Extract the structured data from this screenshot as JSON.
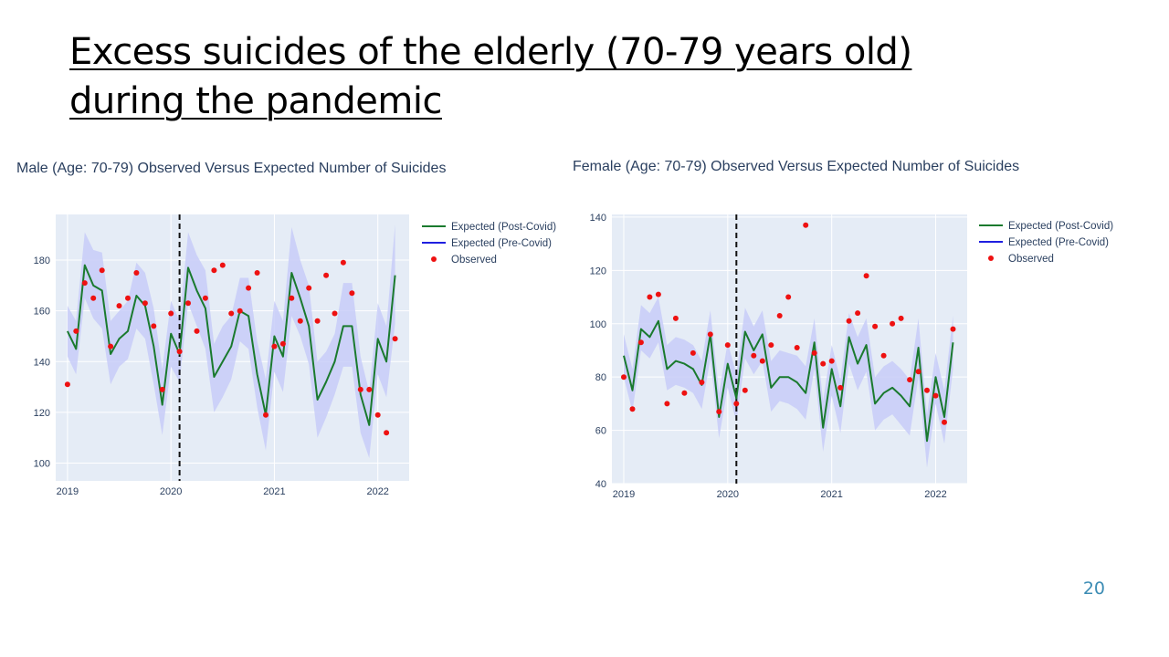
{
  "slide": {
    "title_line1": "Excess suicides of the elderly (70-79 years old)",
    "title_line2": "during the pandemic",
    "page_number": "20"
  },
  "colors": {
    "post_covid": "#1a7a2e",
    "pre_covid": "#1f1fe0",
    "observed": "#ee1111",
    "band": "#c8ccf8",
    "plot_bg": "#e5ecf6",
    "grid": "#ffffff"
  },
  "chart_data": [
    {
      "type": "line",
      "title": "Male (Age: 70-79) Observed Versus Expected Number of Suicides",
      "xlabel": "",
      "ylabel": "",
      "x_ticks": [
        "2019",
        "2020",
        "2021",
        "2022"
      ],
      "y_ticks": [
        100,
        120,
        140,
        160,
        180
      ],
      "xlim": [
        "2018-11-20",
        "2022-04-20"
      ],
      "ylim": [
        93,
        198
      ],
      "covid_marker": "2020-02",
      "legend": [
        "Expected (Post-Covid)",
        "Expected (Pre-Covid)",
        "Observed"
      ],
      "legend_position": "right",
      "grid": true,
      "x": [
        "2019-01",
        "2019-02",
        "2019-03",
        "2019-04",
        "2019-05",
        "2019-06",
        "2019-07",
        "2019-08",
        "2019-09",
        "2019-10",
        "2019-11",
        "2019-12",
        "2020-01",
        "2020-02",
        "2020-03",
        "2020-04",
        "2020-05",
        "2020-06",
        "2020-07",
        "2020-08",
        "2020-09",
        "2020-10",
        "2020-11",
        "2020-12",
        "2021-01",
        "2021-02",
        "2021-03",
        "2021-04",
        "2021-05",
        "2021-06",
        "2021-07",
        "2021-08",
        "2021-09",
        "2021-10",
        "2021-11",
        "2021-12",
        "2022-01",
        "2022-02",
        "2022-03"
      ],
      "series": [
        {
          "name": "Expected (Post-Covid)",
          "kind": "line",
          "values": [
            152,
            145,
            178,
            170,
            168,
            143,
            149,
            152,
            166,
            162,
            146,
            123,
            151,
            143,
            177,
            168,
            161,
            134,
            140,
            146,
            160,
            158,
            135,
            119,
            150,
            142,
            175,
            165,
            154,
            125,
            132,
            140,
            154,
            154,
            127,
            115,
            149,
            140,
            174
          ]
        },
        {
          "name": "Band",
          "kind": "band",
          "upper": [
            162,
            156,
            191,
            184,
            183,
            156,
            160,
            164,
            179,
            175,
            161,
            137,
            164,
            156,
            191,
            182,
            176,
            147,
            154,
            158,
            173,
            173,
            148,
            133,
            164,
            156,
            193,
            180,
            170,
            140,
            144,
            151,
            171,
            171,
            142,
            128,
            163,
            154,
            194
          ],
          "lower": [
            142,
            135,
            165,
            157,
            153,
            131,
            138,
            141,
            153,
            149,
            131,
            111,
            138,
            132,
            163,
            154,
            145,
            120,
            126,
            133,
            148,
            145,
            122,
            105,
            136,
            128,
            158,
            150,
            139,
            110,
            118,
            127,
            138,
            138,
            112,
            102,
            135,
            126,
            155
          ]
        },
        {
          "name": "Observed",
          "kind": "scatter",
          "values": [
            131,
            152,
            171,
            165,
            176,
            146,
            162,
            165,
            175,
            163,
            154,
            129,
            159,
            144,
            163,
            152,
            165,
            176,
            178,
            159,
            160,
            169,
            175,
            119,
            146,
            147,
            165,
            156,
            169,
            156,
            174,
            159,
            179,
            167,
            129,
            129,
            119,
            112,
            149
          ]
        }
      ]
    },
    {
      "type": "line",
      "title": "Female (Age: 70-79) Observed Versus Expected Number of Suicides",
      "xlabel": "",
      "ylabel": "",
      "x_ticks": [
        "2019",
        "2020",
        "2021",
        "2022"
      ],
      "y_ticks": [
        40,
        60,
        80,
        100,
        120,
        140
      ],
      "xlim": [
        "2018-11-20",
        "2022-04-20"
      ],
      "ylim": [
        40,
        141
      ],
      "covid_marker": "2020-02",
      "legend": [
        "Expected (Post-Covid)",
        "Expected (Pre-Covid)",
        "Observed"
      ],
      "legend_position": "right",
      "grid": true,
      "x": [
        "2019-01",
        "2019-02",
        "2019-03",
        "2019-04",
        "2019-05",
        "2019-06",
        "2019-07",
        "2019-08",
        "2019-09",
        "2019-10",
        "2019-11",
        "2019-12",
        "2020-01",
        "2020-02",
        "2020-03",
        "2020-04",
        "2020-05",
        "2020-06",
        "2020-07",
        "2020-08",
        "2020-09",
        "2020-10",
        "2020-11",
        "2020-12",
        "2021-01",
        "2021-02",
        "2021-03",
        "2021-04",
        "2021-05",
        "2021-06",
        "2021-07",
        "2021-08",
        "2021-09",
        "2021-10",
        "2021-11",
        "2021-12",
        "2022-01",
        "2022-02",
        "2022-03"
      ],
      "series": [
        {
          "name": "Expected (Post-Covid)",
          "kind": "line",
          "values": [
            88,
            75,
            98,
            95,
            101,
            83,
            86,
            85,
            83,
            77,
            96,
            65,
            85,
            72,
            97,
            90,
            96,
            76,
            80,
            80,
            78,
            74,
            93,
            61,
            83,
            69,
            95,
            85,
            92,
            70,
            74,
            76,
            73,
            69,
            91,
            56,
            80,
            65,
            93
          ]
        },
        {
          "name": "Band",
          "kind": "band",
          "upper": [
            96,
            83,
            107,
            104,
            110,
            92,
            95,
            94,
            92,
            86,
            105,
            74,
            93,
            81,
            106,
            99,
            105,
            86,
            90,
            89,
            88,
            84,
            102,
            71,
            92,
            79,
            104,
            95,
            102,
            80,
            84,
            86,
            83,
            79,
            102,
            66,
            89,
            75,
            103
          ],
          "lower": [
            80,
            67,
            90,
            87,
            93,
            75,
            77,
            76,
            74,
            68,
            87,
            57,
            76,
            63,
            87,
            81,
            86,
            67,
            71,
            70,
            68,
            64,
            83,
            52,
            73,
            59,
            85,
            75,
            82,
            60,
            64,
            66,
            62,
            58,
            80,
            46,
            70,
            55,
            83
          ]
        },
        {
          "name": "Observed",
          "kind": "scatter",
          "values": [
            80,
            68,
            93,
            110,
            111,
            70,
            102,
            74,
            89,
            78,
            96,
            67,
            92,
            70,
            75,
            88,
            86,
            92,
            103,
            110,
            91,
            137,
            89,
            85,
            86,
            76,
            101,
            104,
            118,
            99,
            88,
            100,
            102,
            79,
            82,
            75,
            73,
            63,
            98
          ]
        }
      ]
    }
  ]
}
